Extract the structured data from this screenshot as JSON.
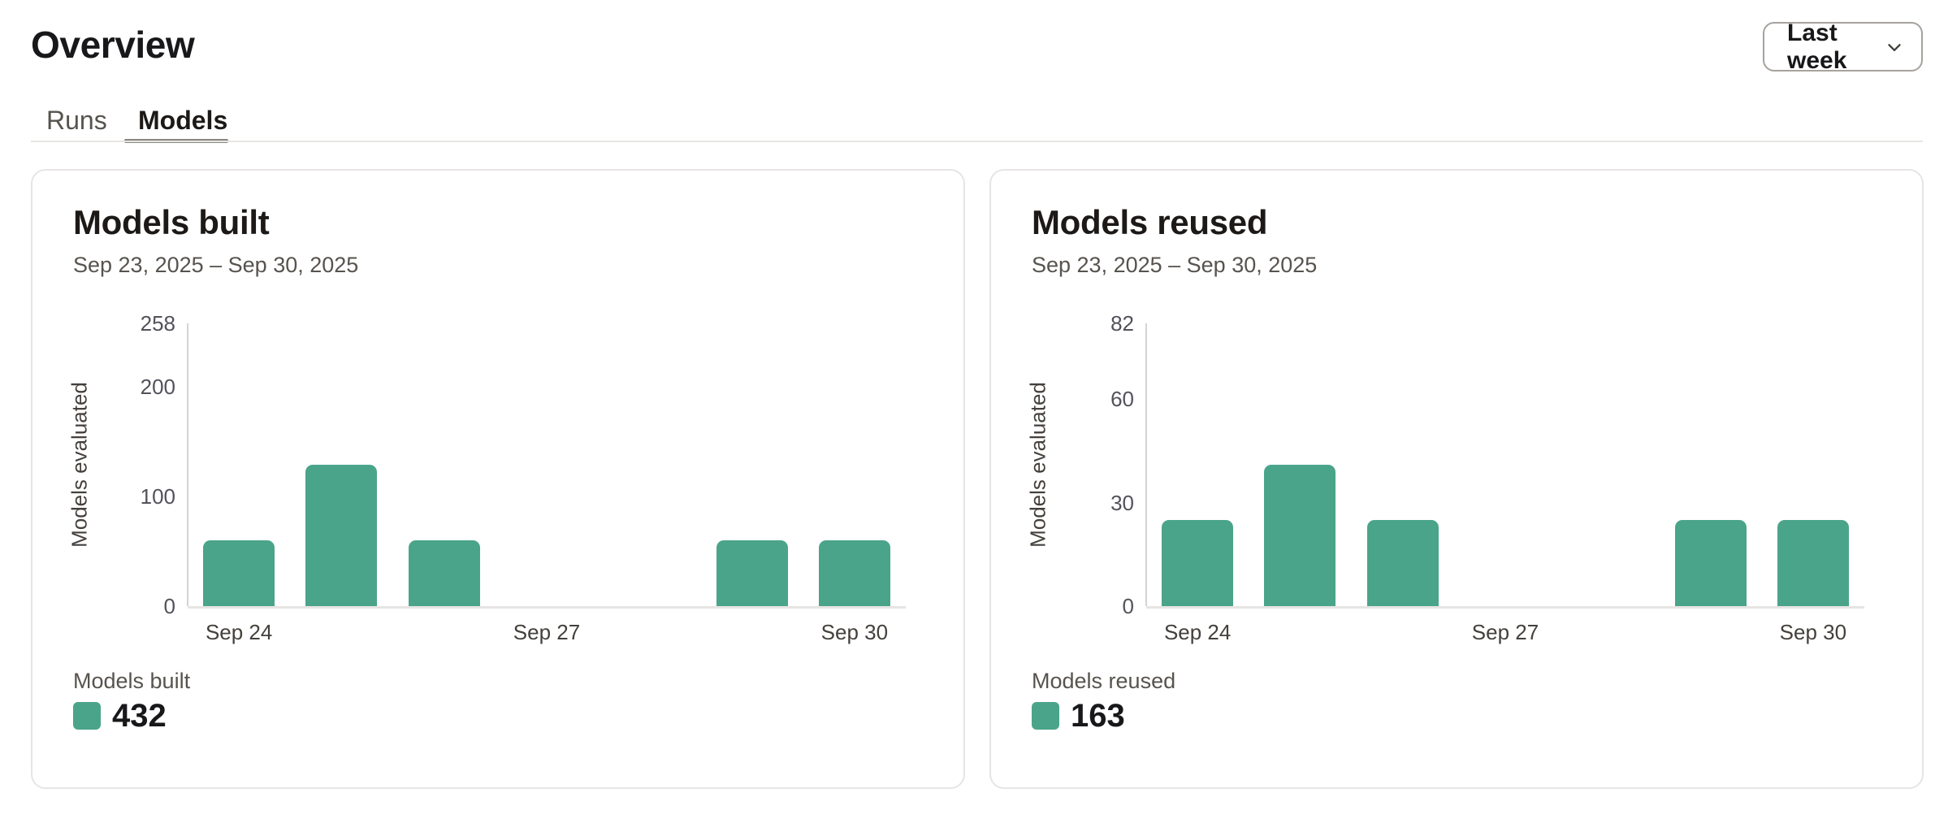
{
  "page": {
    "title": "Overview",
    "range_selector": {
      "label": "Last week"
    },
    "tabs": [
      {
        "label": "Runs",
        "active": false
      },
      {
        "label": "Models",
        "active": true
      }
    ]
  },
  "colors": {
    "accent_green": "#4AA489",
    "card_border": "#e7e5e4",
    "y_axis_line": "#d6d3d1",
    "x_axis_line": "#e7e5e4",
    "tab_underline": "#8a8580"
  },
  "chart_data": [
    {
      "type": "bar",
      "title": "Models built",
      "date_range": "Sep 23, 2025 – Sep 30, 2025",
      "ylabel": "Models evaluated",
      "categories": [
        "Sep 24",
        "Sep 25",
        "Sep 26",
        "Sep 27",
        "Sep 28",
        "Sep 29",
        "Sep 30"
      ],
      "values": [
        60,
        129,
        60,
        0,
        0,
        60,
        60
      ],
      "yticks": [
        0,
        100,
        200,
        258
      ],
      "ylim": [
        0,
        258
      ],
      "xticks_shown": [
        "Sep 24",
        "Sep 27",
        "Sep 30"
      ],
      "grid": false,
      "legend": {
        "label": "Models built",
        "total": 432
      }
    },
    {
      "type": "bar",
      "title": "Models reused",
      "date_range": "Sep 23, 2025 – Sep 30, 2025",
      "ylabel": "Models evaluated",
      "categories": [
        "Sep 24",
        "Sep 25",
        "Sep 26",
        "Sep 27",
        "Sep 28",
        "Sep 29",
        "Sep 30"
      ],
      "values": [
        25,
        41,
        25,
        0,
        0,
        25,
        25
      ],
      "yticks": [
        0,
        30,
        60,
        82
      ],
      "ylim": [
        0,
        82
      ],
      "xticks_shown": [
        "Sep 24",
        "Sep 27",
        "Sep 30"
      ],
      "grid": false,
      "legend": {
        "label": "Models reused",
        "total": 163
      }
    }
  ]
}
